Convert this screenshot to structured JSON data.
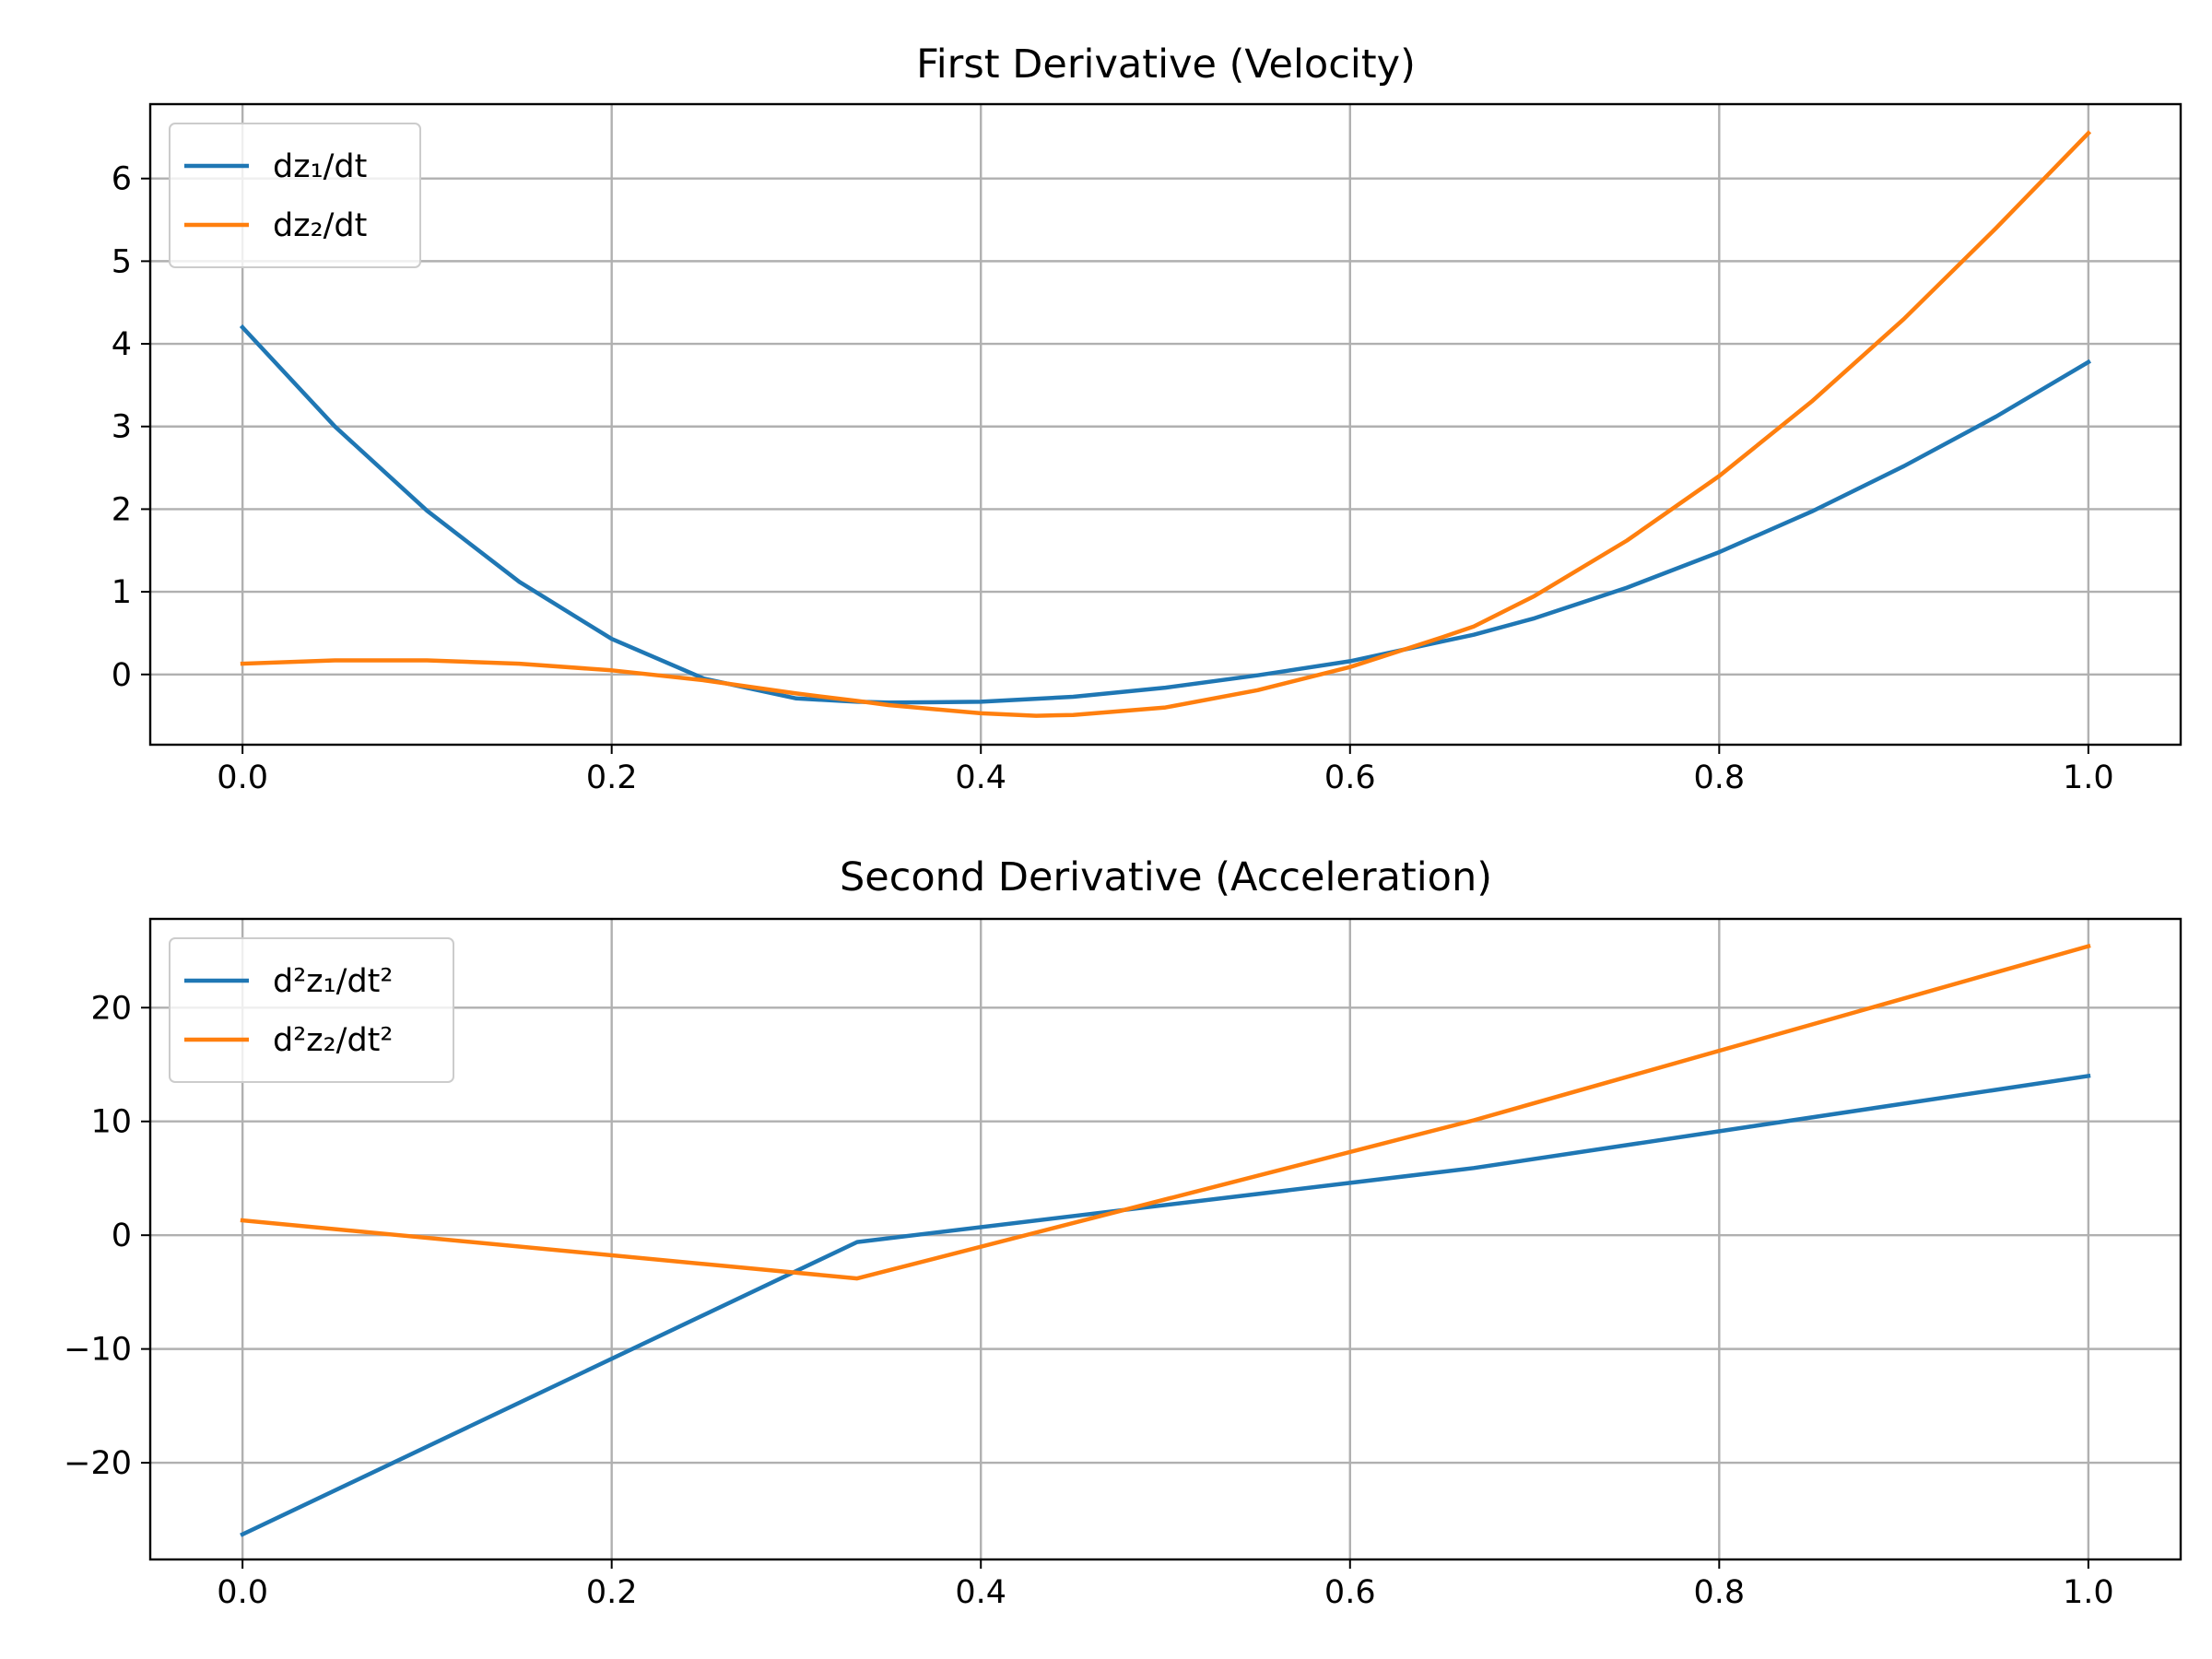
{
  "chart_data": [
    {
      "type": "line",
      "title": "First Derivative (Velocity)",
      "xlabel": "",
      "ylabel": "",
      "xlim": [
        -0.05,
        1.05
      ],
      "ylim": [
        -0.85,
        6.9
      ],
      "xticks": [
        0.0,
        0.2,
        0.4,
        0.6,
        0.8,
        1.0
      ],
      "xtick_labels": [
        "0.0",
        "0.2",
        "0.4",
        "0.6",
        "0.8",
        "1.0"
      ],
      "yticks": [
        0,
        1,
        2,
        3,
        4,
        5,
        6
      ],
      "ytick_labels": [
        "0",
        "1",
        "2",
        "3",
        "4",
        "5",
        "6"
      ],
      "grid": true,
      "legend_position": "upper-left",
      "series": [
        {
          "name": "dz₁/dt",
          "color": "#1f77b4",
          "x": [
            0.0,
            0.05,
            0.1,
            0.15,
            0.2,
            0.25,
            0.3,
            0.333,
            0.35,
            0.4,
            0.45,
            0.5,
            0.55,
            0.6,
            0.65,
            0.667,
            0.7,
            0.75,
            0.8,
            0.85,
            0.9,
            0.95,
            1.0
          ],
          "y": [
            4.2,
            3.0,
            1.98,
            1.12,
            0.43,
            -0.05,
            -0.29,
            -0.33,
            -0.34,
            -0.33,
            -0.27,
            -0.16,
            -0.01,
            0.16,
            0.4,
            0.48,
            0.68,
            1.05,
            1.48,
            1.97,
            2.52,
            3.12,
            3.78
          ]
        },
        {
          "name": "dz₂/dt",
          "color": "#ff7f0e",
          "x": [
            0.0,
            0.05,
            0.1,
            0.15,
            0.2,
            0.25,
            0.3,
            0.333,
            0.35,
            0.4,
            0.43,
            0.45,
            0.5,
            0.55,
            0.6,
            0.65,
            0.667,
            0.7,
            0.75,
            0.8,
            0.85,
            0.9,
            0.95,
            1.0
          ],
          "y": [
            0.13,
            0.17,
            0.17,
            0.13,
            0.05,
            -0.07,
            -0.23,
            -0.32,
            -0.37,
            -0.47,
            -0.5,
            -0.49,
            -0.4,
            -0.19,
            0.09,
            0.45,
            0.58,
            0.95,
            1.62,
            2.4,
            3.3,
            4.3,
            5.4,
            6.55
          ]
        }
      ]
    },
    {
      "type": "line",
      "title": "Second Derivative (Acceleration)",
      "xlabel": "",
      "ylabel": "",
      "xlim": [
        -0.05,
        1.05
      ],
      "ylim": [
        -28.5,
        27.8
      ],
      "xticks": [
        0.0,
        0.2,
        0.4,
        0.6,
        0.8,
        1.0
      ],
      "xtick_labels": [
        "0.0",
        "0.2",
        "0.4",
        "0.6",
        "0.8",
        "1.0"
      ],
      "yticks": [
        -20,
        -10,
        0,
        10,
        20
      ],
      "ytick_labels": [
        "−20",
        "−10",
        "0",
        "10",
        "20"
      ],
      "grid": true,
      "legend_position": "upper-left",
      "series": [
        {
          "name": "d²z₁/dt²",
          "color": "#1f77b4",
          "x": [
            0.0,
            0.333,
            0.667,
            1.0
          ],
          "y": [
            -26.3,
            -0.6,
            5.9,
            14.0
          ]
        },
        {
          "name": "d²z₂/dt²",
          "color": "#ff7f0e",
          "x": [
            0.0,
            0.333,
            0.667,
            1.0
          ],
          "y": [
            1.3,
            -3.8,
            10.1,
            25.4
          ]
        }
      ]
    }
  ]
}
